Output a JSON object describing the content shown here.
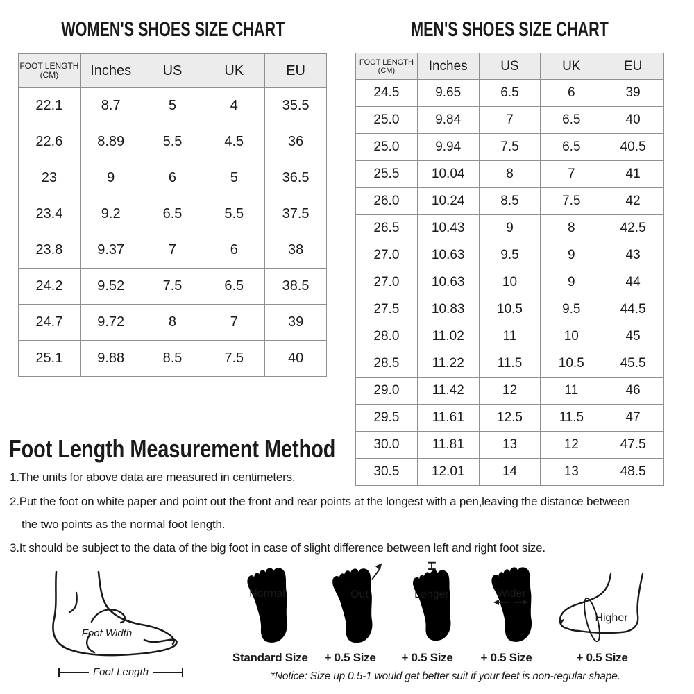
{
  "women_chart": {
    "title": "WOMEN'S SHOES SIZE CHART",
    "headers": [
      {
        "label": "FOOT LENGTH",
        "sub": "(CM)"
      },
      "Inches",
      "US",
      "UK",
      "EU"
    ],
    "rows": [
      [
        "22.1",
        "8.7",
        "5",
        "4",
        "35.5"
      ],
      [
        "22.6",
        "8.89",
        "5.5",
        "4.5",
        "36"
      ],
      [
        "23",
        "9",
        "6",
        "5",
        "36.5"
      ],
      [
        "23.4",
        "9.2",
        "6.5",
        "5.5",
        "37.5"
      ],
      [
        "23.8",
        "9.37",
        "7",
        "6",
        "38"
      ],
      [
        "24.2",
        "9.52",
        "7.5",
        "6.5",
        "38.5"
      ],
      [
        "24.7",
        "9.72",
        "8",
        "7",
        "39"
      ],
      [
        "25.1",
        "9.88",
        "8.5",
        "7.5",
        "40"
      ]
    ]
  },
  "men_chart": {
    "title": "MEN'S SHOES SIZE CHART",
    "headers": [
      {
        "label": "FOOT LENGTH",
        "sub": "(CM)"
      },
      "Inches",
      "US",
      "UK",
      "EU"
    ],
    "rows": [
      [
        "24.5",
        "9.65",
        "6.5",
        "6",
        "39"
      ],
      [
        "25.0",
        "9.84",
        "7",
        "6.5",
        "40"
      ],
      [
        "25.0",
        "9.94",
        "7.5",
        "6.5",
        "40.5"
      ],
      [
        "25.5",
        "10.04",
        "8",
        "7",
        "41"
      ],
      [
        "26.0",
        "10.24",
        "8.5",
        "7.5",
        "42"
      ],
      [
        "26.5",
        "10.43",
        "9",
        "8",
        "42.5"
      ],
      [
        "27.0",
        "10.63",
        "9.5",
        "9",
        "43"
      ],
      [
        "27.0",
        "10.63",
        "10",
        "9",
        "44"
      ],
      [
        "27.5",
        "10.83",
        "10.5",
        "9.5",
        "44.5"
      ],
      [
        "28.0",
        "11.02",
        "11",
        "10",
        "45"
      ],
      [
        "28.5",
        "11.22",
        "11.5",
        "10.5",
        "45.5"
      ],
      [
        "29.0",
        "11.42",
        "12",
        "11",
        "46"
      ],
      [
        "29.5",
        "11.61",
        "12.5",
        "11.5",
        "47"
      ],
      [
        "30.0",
        "11.81",
        "13",
        "12",
        "47.5"
      ],
      [
        "30.5",
        "12.01",
        "14",
        "13",
        "48.5"
      ]
    ]
  },
  "measurement": {
    "title": "Foot Length Measurement Method",
    "items": [
      "1.The units for above data are measured in centimeters.",
      "2.Put the foot on white paper and point out the front and rear points at the longest with a pen,leaving the distance between",
      "the two points as the normal foot length.",
      "3.It should be subject to the data of the big foot in case of slight difference between left and right foot size."
    ]
  },
  "diagram": {
    "foot_width_label": "Foot Width",
    "foot_length_label": "Foot Length",
    "feet": [
      {
        "label": "Normal",
        "size": "Standard Size"
      },
      {
        "label": "Out",
        "size": "+ 0.5 Size"
      },
      {
        "label": "Longer",
        "size": "+ 0.5 Size"
      },
      {
        "label": "Wider",
        "size": "+ 0.5 Size"
      },
      {
        "label": "Higher",
        "size": "+ 0.5 Size"
      }
    ],
    "notice": "*Notice:  Size up 0.5-1 would get better suit if your feet is non-regular shape."
  },
  "colors": {
    "border": "#8f8f8f",
    "header_bg": "#ececec",
    "text": "#1a1a1a"
  }
}
